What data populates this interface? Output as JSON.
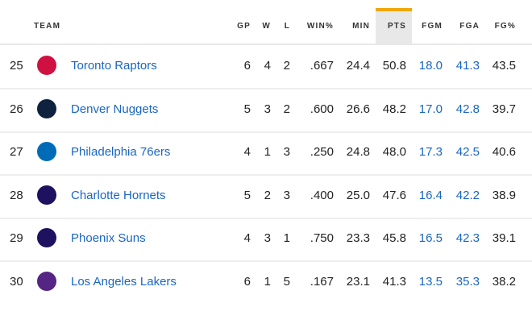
{
  "headers": {
    "team": "TEAM",
    "gp": "GP",
    "w": "W",
    "l": "L",
    "winpct": "WIN%",
    "min": "MIN",
    "pts": "PTS",
    "fgm": "FGM",
    "fga": "FGA",
    "fgpct": "FG%"
  },
  "sorted_column": "PTS",
  "accent": "#f0a800",
  "rows": [
    {
      "rank": "25",
      "team": "Toronto Raptors",
      "logo_color": "#ce1141",
      "gp": "6",
      "w": "4",
      "l": "2",
      "winpct": ".667",
      "min": "24.4",
      "pts": "50.8",
      "fgm": "18.0",
      "fga": "41.3",
      "fgpct": "43.5"
    },
    {
      "rank": "26",
      "team": "Denver Nuggets",
      "logo_color": "#0e2240",
      "gp": "5",
      "w": "3",
      "l": "2",
      "winpct": ".600",
      "min": "26.6",
      "pts": "48.2",
      "fgm": "17.0",
      "fga": "42.8",
      "fgpct": "39.7"
    },
    {
      "rank": "27",
      "team": "Philadelphia 76ers",
      "logo_color": "#006bb6",
      "gp": "4",
      "w": "1",
      "l": "3",
      "winpct": ".250",
      "min": "24.8",
      "pts": "48.0",
      "fgm": "17.3",
      "fga": "42.5",
      "fgpct": "40.6"
    },
    {
      "rank": "28",
      "team": "Charlotte Hornets",
      "logo_color": "#1d1160",
      "gp": "5",
      "w": "2",
      "l": "3",
      "winpct": ".400",
      "min": "25.0",
      "pts": "47.6",
      "fgm": "16.4",
      "fga": "42.2",
      "fgpct": "38.9"
    },
    {
      "rank": "29",
      "team": "Phoenix Suns",
      "logo_color": "#1d1160",
      "gp": "4",
      "w": "3",
      "l": "1",
      "winpct": ".750",
      "min": "23.3",
      "pts": "45.8",
      "fgm": "16.5",
      "fga": "42.3",
      "fgpct": "39.1"
    },
    {
      "rank": "30",
      "team": "Los Angeles Lakers",
      "logo_color": "#552583",
      "gp": "6",
      "w": "1",
      "l": "5",
      "winpct": ".167",
      "min": "23.1",
      "pts": "41.3",
      "fgm": "13.5",
      "fga": "35.3",
      "fgpct": "38.2"
    }
  ]
}
